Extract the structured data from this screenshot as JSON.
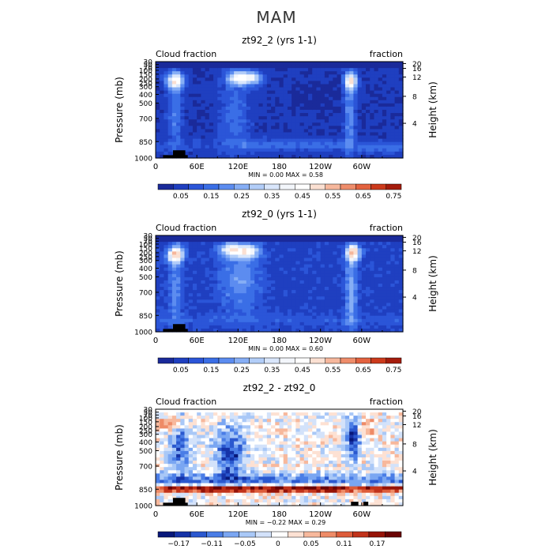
{
  "title": "MAM",
  "colors": {
    "blues": [
      "#1a2a9a",
      "#1f3fc0",
      "#2b55d8",
      "#3a6ee6",
      "#5c8cf0",
      "#86aef5",
      "#b2cdf8",
      "#d9e6fb"
    ],
    "whites": [
      "#f3f6fb",
      "#ffffff"
    ],
    "reds": [
      "#fbe0d2",
      "#f6b79c",
      "#ef8d6b",
      "#e3623f",
      "#cc3a1c",
      "#a51c0c",
      "#7a0a05"
    ],
    "land": "#000000"
  },
  "chart_data": [
    {
      "type": "heatmap",
      "title": "zt92_2 (yrs 1-1)",
      "left_label": "Cloud fraction",
      "right_label": "fraction",
      "ylabel": "Pressure (mb)",
      "ylabel_right": "Height (km)",
      "xticks": [
        "0",
        "60E",
        "120E",
        "180",
        "120W",
        "60W"
      ],
      "xlim": [
        0,
        360
      ],
      "yticks": [
        "30",
        "50",
        "70",
        "100",
        "150",
        "200",
        "250",
        "300",
        "400",
        "500",
        "700",
        "850",
        "1000"
      ],
      "right_ticks": [
        "20",
        "16",
        "12",
        "8",
        "4"
      ],
      "stats": "MIN =    0.00   MAX =    0.58",
      "min": 0.0,
      "max": 0.58,
      "colorbar_labels": [
        "0.05",
        "0.15",
        "0.25",
        "0.35",
        "0.45",
        "0.55",
        "0.65",
        "0.75"
      ],
      "colorbar_range": [
        0.0,
        0.8
      ]
    },
    {
      "type": "heatmap",
      "title": "zt92_0 (yrs 1-1)",
      "left_label": "Cloud fraction",
      "right_label": "fraction",
      "ylabel": "Pressure (mb)",
      "ylabel_right": "Height (km)",
      "xticks": [
        "0",
        "60E",
        "120E",
        "180",
        "120W",
        "60W"
      ],
      "xlim": [
        0,
        360
      ],
      "yticks": [
        "30",
        "50",
        "70",
        "100",
        "150",
        "200",
        "250",
        "300",
        "400",
        "500",
        "700",
        "850",
        "1000"
      ],
      "right_ticks": [
        "20",
        "16",
        "12",
        "8",
        "4"
      ],
      "stats": "MIN =    0.00   MAX =    0.60",
      "min": 0.0,
      "max": 0.6,
      "colorbar_labels": [
        "0.05",
        "0.15",
        "0.25",
        "0.35",
        "0.45",
        "0.55",
        "0.65",
        "0.75"
      ],
      "colorbar_range": [
        0.0,
        0.8
      ]
    },
    {
      "type": "heatmap",
      "title": "zt92_2 - zt92_0",
      "left_label": "Cloud fraction",
      "right_label": "fraction",
      "ylabel": "Pressure (mb)",
      "ylabel_right": "Height (km)",
      "xticks": [
        "0",
        "60E",
        "120E",
        "180",
        "120W",
        "60W"
      ],
      "xlim": [
        0,
        360
      ],
      "yticks": [
        "30",
        "50",
        "70",
        "100",
        "150",
        "200",
        "250",
        "300",
        "400",
        "500",
        "700",
        "850",
        "1000"
      ],
      "right_ticks": [
        "20",
        "16",
        "12",
        "8",
        "4"
      ],
      "stats": "MIN =  −0.22   MAX =    0.29",
      "min": -0.22,
      "max": 0.29,
      "colorbar_labels": [
        "−0.17",
        "−0.11",
        "−0.05",
        "0",
        "0.05",
        "0.11",
        "0.17"
      ],
      "colorbar_range": [
        -0.2,
        0.2
      ]
    }
  ]
}
